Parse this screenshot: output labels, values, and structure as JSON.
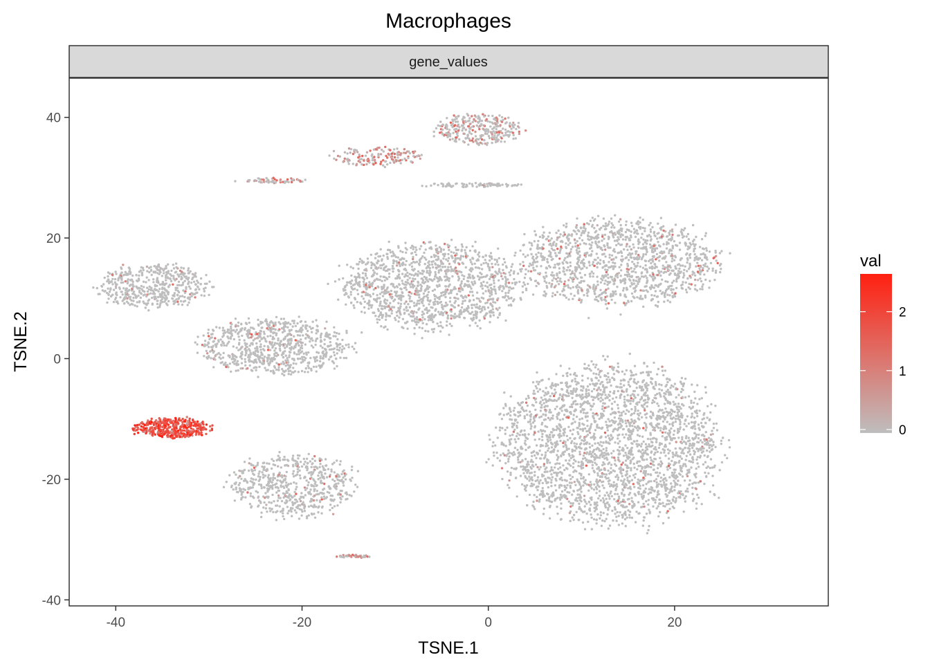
{
  "chart_data": {
    "type": "scatter",
    "title": "Macrophages",
    "facet_label": "gene_values",
    "xlabel": "TSNE.1",
    "ylabel": "TSNE.2",
    "xlim": [
      -45,
      36.5
    ],
    "ylim": [
      -41,
      46.5
    ],
    "x_ticks": [
      -40,
      -20,
      0,
      20
    ],
    "y_ticks": [
      -40,
      -20,
      0,
      20,
      40
    ],
    "x_tick_labels": [
      "-40",
      "-20",
      "0",
      "20"
    ],
    "y_tick_labels": [
      "-40",
      "-20",
      "0",
      "20",
      "40"
    ],
    "grid": false,
    "color_scale": {
      "name": "val",
      "low_color": "#bebebe",
      "high_color": "#ff2010",
      "range": [
        0,
        2.7
      ],
      "ticks": [
        0,
        1,
        2
      ],
      "tick_labels": [
        "0",
        "1",
        "2"
      ]
    },
    "legend_position": "right",
    "clusters": [
      {
        "id": "main-right",
        "center": [
          13,
          -14
        ],
        "spread": [
          10,
          11
        ],
        "n": 2600,
        "val": 0.02
      },
      {
        "id": "upper-right",
        "center": [
          14,
          16
        ],
        "spread": [
          9,
          6
        ],
        "n": 1300,
        "val": 0.03
      },
      {
        "id": "upper-middle",
        "center": [
          -6,
          12
        ],
        "spread": [
          8,
          6
        ],
        "n": 1300,
        "val": 0.03
      },
      {
        "id": "middle-left",
        "center": [
          -23,
          2
        ],
        "spread": [
          7,
          3.8
        ],
        "n": 800,
        "val": 0.02
      },
      {
        "id": "upper-left",
        "center": [
          -36,
          12
        ],
        "spread": [
          5,
          3
        ],
        "n": 500,
        "val": 0.02
      },
      {
        "id": "top-cluster",
        "center": [
          -1,
          38
        ],
        "spread": [
          3.8,
          2.2
        ],
        "n": 300,
        "val": 0.15
      },
      {
        "id": "top-left-arm",
        "center": [
          -12,
          33.5
        ],
        "spread": [
          4,
          1.3
        ],
        "n": 150,
        "val": 0.3
      },
      {
        "id": "lower-left",
        "center": [
          -21,
          -21
        ],
        "spread": [
          5.5,
          4.5
        ],
        "n": 600,
        "val": 0.03
      },
      {
        "id": "macrophage-cluster",
        "center": [
          -34,
          -11.5
        ],
        "spread": [
          3.5,
          1.4
        ],
        "n": 420,
        "val": 1.9
      },
      {
        "id": "thin-streak-upper",
        "center": [
          -23,
          29.5
        ],
        "spread": [
          3,
          0.35
        ],
        "n": 60,
        "val": 0.25
      },
      {
        "id": "thin-streak-lower",
        "center": [
          -14.5,
          -32.8
        ],
        "spread": [
          1.4,
          0.25
        ],
        "n": 40,
        "val": 0.3
      },
      {
        "id": "thin-streak-mid",
        "center": [
          -2,
          28.8
        ],
        "spread": [
          4.5,
          0.3
        ],
        "n": 80,
        "val": 0.02
      }
    ]
  }
}
